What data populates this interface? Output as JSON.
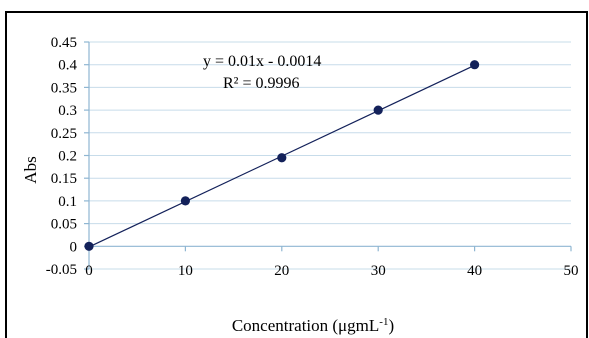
{
  "chart_data": {
    "type": "scatter",
    "x": [
      0,
      10,
      20,
      30,
      40
    ],
    "y": [
      0,
      0.1,
      0.195,
      0.3,
      0.4
    ],
    "trendline": {
      "slope": 0.01,
      "intercept": -0.0014
    },
    "equation": "y = 0.01x - 0.0014",
    "r2_label": "R² = 0.9996",
    "xlabel": "Concentration (μgmL",
    "xlabel_sup": "-1",
    "xlabel_close": ")",
    "ylabel": "Abs",
    "xlim": [
      0,
      50
    ],
    "ylim": [
      -0.05,
      0.45
    ],
    "xticks": [
      "0",
      "10",
      "20",
      "30",
      "40",
      "50"
    ],
    "yticks": [
      "-0.05",
      "0",
      "0.05",
      "0.1",
      "0.15",
      "0.2",
      "0.25",
      "0.3",
      "0.35",
      "0.4",
      "0.45"
    ],
    "grid": "horizontal",
    "legend": "none",
    "colors": {
      "points": "#13215a",
      "line": "#13215a",
      "grid": "#c7dcea",
      "axis": "#8fb6d2"
    }
  }
}
